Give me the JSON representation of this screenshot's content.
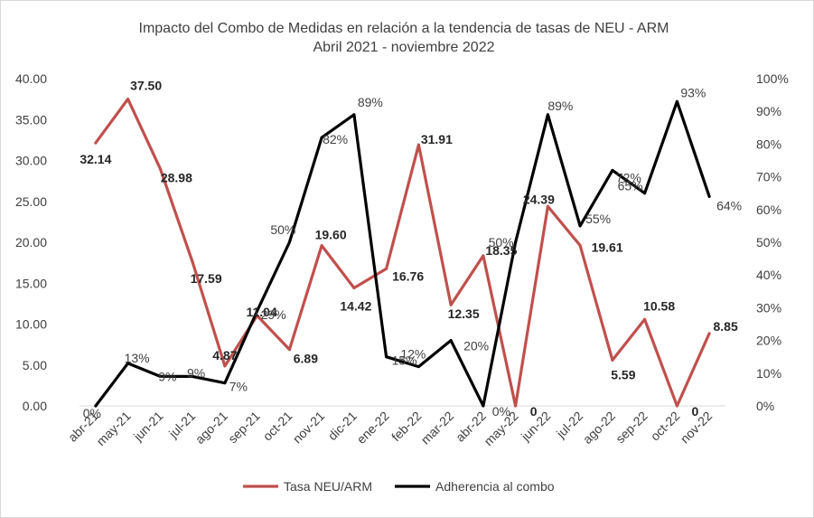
{
  "chart_data": {
    "type": "line",
    "title": "Impacto del Combo de Medidas en relación a la tendencia de tasas de NEU - ARM",
    "subtitle": "Abril 2021 - noviembre 2022",
    "categories": [
      "abr-21",
      "may-21",
      "jun-21",
      "jul-21",
      "ago-21",
      "sep-21",
      "oct-21",
      "nov-21",
      "dic-21",
      "ene-22",
      "feb-22",
      "mar-22",
      "abr-22",
      "may-22",
      "jun-22",
      "jul-22",
      "ago-22",
      "sep-22",
      "oct-22",
      "nov-22"
    ],
    "y_left": {
      "min": 0,
      "max": 40,
      "step": 5,
      "tick_labels": [
        "0.00",
        "5.00",
        "10.00",
        "15.00",
        "20.00",
        "25.00",
        "30.00",
        "35.00",
        "40.00"
      ]
    },
    "y_right": {
      "min": 0,
      "max": 100,
      "step": 10,
      "tick_labels": [
        "0%",
        "10%",
        "20%",
        "30%",
        "40%",
        "50%",
        "60%",
        "70%",
        "80%",
        "90%",
        "100%"
      ]
    },
    "grid": false,
    "legend_position": "bottom",
    "series": [
      {
        "name": "Tasa NEU/ARM",
        "axis": "left",
        "color": "#C0504D",
        "values": [
          32.14,
          37.5,
          28.98,
          17.59,
          4.87,
          11.04,
          6.89,
          19.6,
          14.42,
          16.76,
          31.91,
          12.35,
          18.35,
          0,
          24.39,
          19.61,
          5.59,
          10.58,
          0,
          8.85
        ],
        "labels": [
          "32.14",
          "37.50",
          "28.98",
          "17.59",
          "4.87",
          "11.04",
          "6.89",
          "19.60",
          "14.42",
          "16.76",
          "31.91",
          "12.35",
          "18.35",
          "0",
          "24.39",
          "19.61",
          "5.59",
          "10.58",
          "0",
          "8.85"
        ]
      },
      {
        "name": "Adherencia al combo",
        "axis": "right",
        "color": "#000000",
        "values": [
          0,
          13,
          9,
          9,
          7,
          29,
          50,
          82,
          89,
          15,
          12,
          20,
          0,
          50,
          89,
          55,
          72,
          65,
          93,
          64
        ],
        "labels": [
          "0%",
          "13%",
          "9%",
          "9%",
          "7%",
          "29%",
          "50%",
          "82%",
          "89%",
          "15%",
          "12%",
          "20%",
          "0%",
          "50%",
          "89%",
          "55%",
          "72%",
          "65%",
          "93%",
          "64%"
        ]
      }
    ]
  }
}
